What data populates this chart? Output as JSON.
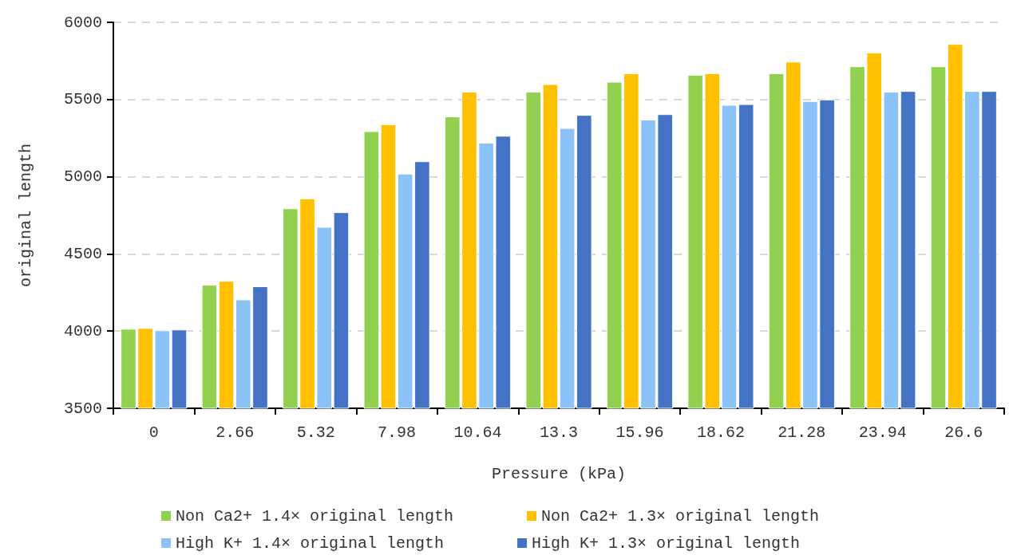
{
  "chart_data": {
    "type": "bar",
    "xlabel": "Pressure (kPa)",
    "ylabel": "original length",
    "categories": [
      "0",
      "2.66",
      "5.32",
      "7.98",
      "10.64",
      "13.3",
      "15.96",
      "18.62",
      "21.28",
      "23.94",
      "26.6"
    ],
    "series": [
      {
        "name": "Non Ca2+ 1.4× original length",
        "color": "#92d050",
        "values": [
          4015,
          4300,
          4795,
          5295,
          5390,
          5550,
          5615,
          5660,
          5670,
          5715,
          5715
        ]
      },
      {
        "name": "Non Ca2+ 1.3× original length",
        "color": "#ffc000",
        "values": [
          4020,
          4325,
          4860,
          5340,
          5550,
          5600,
          5670,
          5670,
          5745,
          5805,
          5860
        ]
      },
      {
        "name": "High K+ 1.4× original length",
        "color": "#8bc3f8",
        "values": [
          4005,
          4205,
          4675,
          5020,
          5220,
          5315,
          5370,
          5465,
          5490,
          5550,
          5555
        ]
      },
      {
        "name": "High K+ 1.3× original length",
        "color": "#4472c4",
        "values": [
          4010,
          4290,
          4770,
          5100,
          5265,
          5400,
          5405,
          5470,
          5500,
          5555,
          5555
        ]
      }
    ],
    "ylim": [
      3500,
      6000
    ],
    "yticks": [
      3500,
      4000,
      4500,
      5000,
      5500,
      6000
    ],
    "grid": "y",
    "legend": "bottom"
  }
}
